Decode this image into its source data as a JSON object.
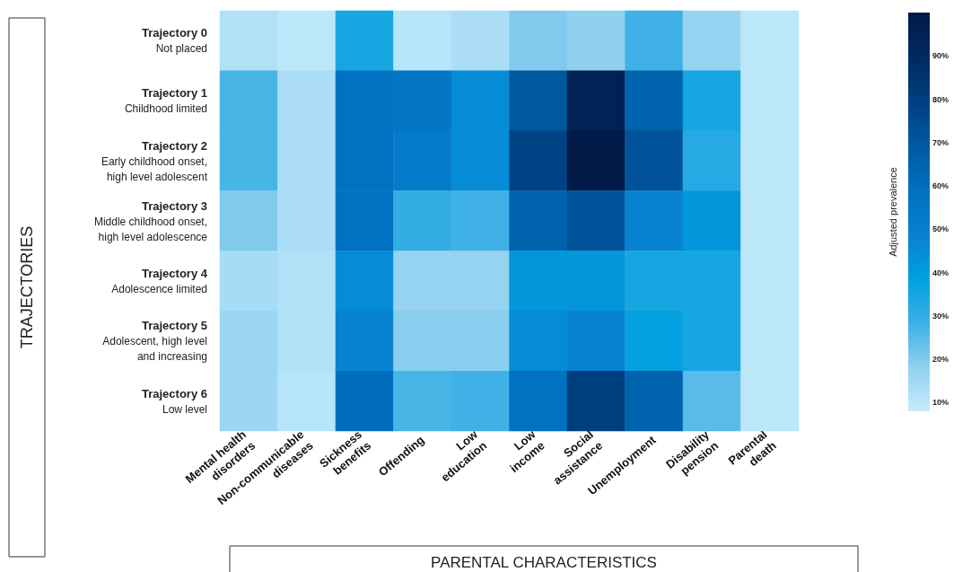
{
  "chart_data": {
    "type": "heatmap",
    "xlabel": "PARENTAL CHARACTERISTICS",
    "ylabel": "TRAJECTORIES",
    "clabel": "Adjusted prevalence",
    "categories": [
      "Mental health\ndisorders",
      "Non-communicable\ndiseases",
      "Sickness\nbenefits",
      "Offending",
      "Low\neducation",
      "Low\nincome",
      "Social\nassistance",
      "Unemployment",
      "Disability\npension",
      "Parental\ndeath"
    ],
    "y_categories": [
      "Trajectory 0\nNot placed",
      "Trajectory 1\nChildhood limited",
      "Trajectory 2\nEarly childhood onset,\nhigh level adolescent",
      "Trajectory 3\nMiddle childhood onset,\nhigh level adolescence",
      "Trajectory 4\nAdolescence limited",
      "Trajectory 5\nAdolescent, high level\nand increasing",
      "Trajectory 6\nLow level"
    ],
    "cells": [
      [
        12,
        10,
        35,
        11,
        13,
        20,
        18,
        28,
        17,
        10
      ],
      [
        27,
        13,
        58,
        55,
        45,
        70,
        95,
        65,
        35,
        10
      ],
      [
        27,
        13,
        58,
        52,
        45,
        78,
        100,
        72,
        32,
        10
      ],
      [
        20,
        13,
        58,
        30,
        28,
        65,
        72,
        48,
        42,
        10
      ],
      [
        14,
        12,
        45,
        17,
        17,
        42,
        42,
        35,
        35,
        10
      ],
      [
        16,
        12,
        48,
        19,
        19,
        45,
        48,
        38,
        35,
        10
      ],
      [
        16,
        11,
        60,
        27,
        28,
        58,
        80,
        65,
        25,
        10
      ]
    ],
    "clim": [
      8,
      100
    ],
    "cticks": [
      {
        "value": 10,
        "label": "10%"
      },
      {
        "value": 20,
        "label": "20%"
      },
      {
        "value": 30,
        "label": "30%"
      },
      {
        "value": 40,
        "label": "40%"
      },
      {
        "value": 50,
        "label": "50%"
      },
      {
        "value": 60,
        "label": "60%"
      },
      {
        "value": 70,
        "label": "70%"
      },
      {
        "value": 80,
        "label": "80%"
      },
      {
        "value": 90,
        "label": "90%"
      }
    ]
  }
}
